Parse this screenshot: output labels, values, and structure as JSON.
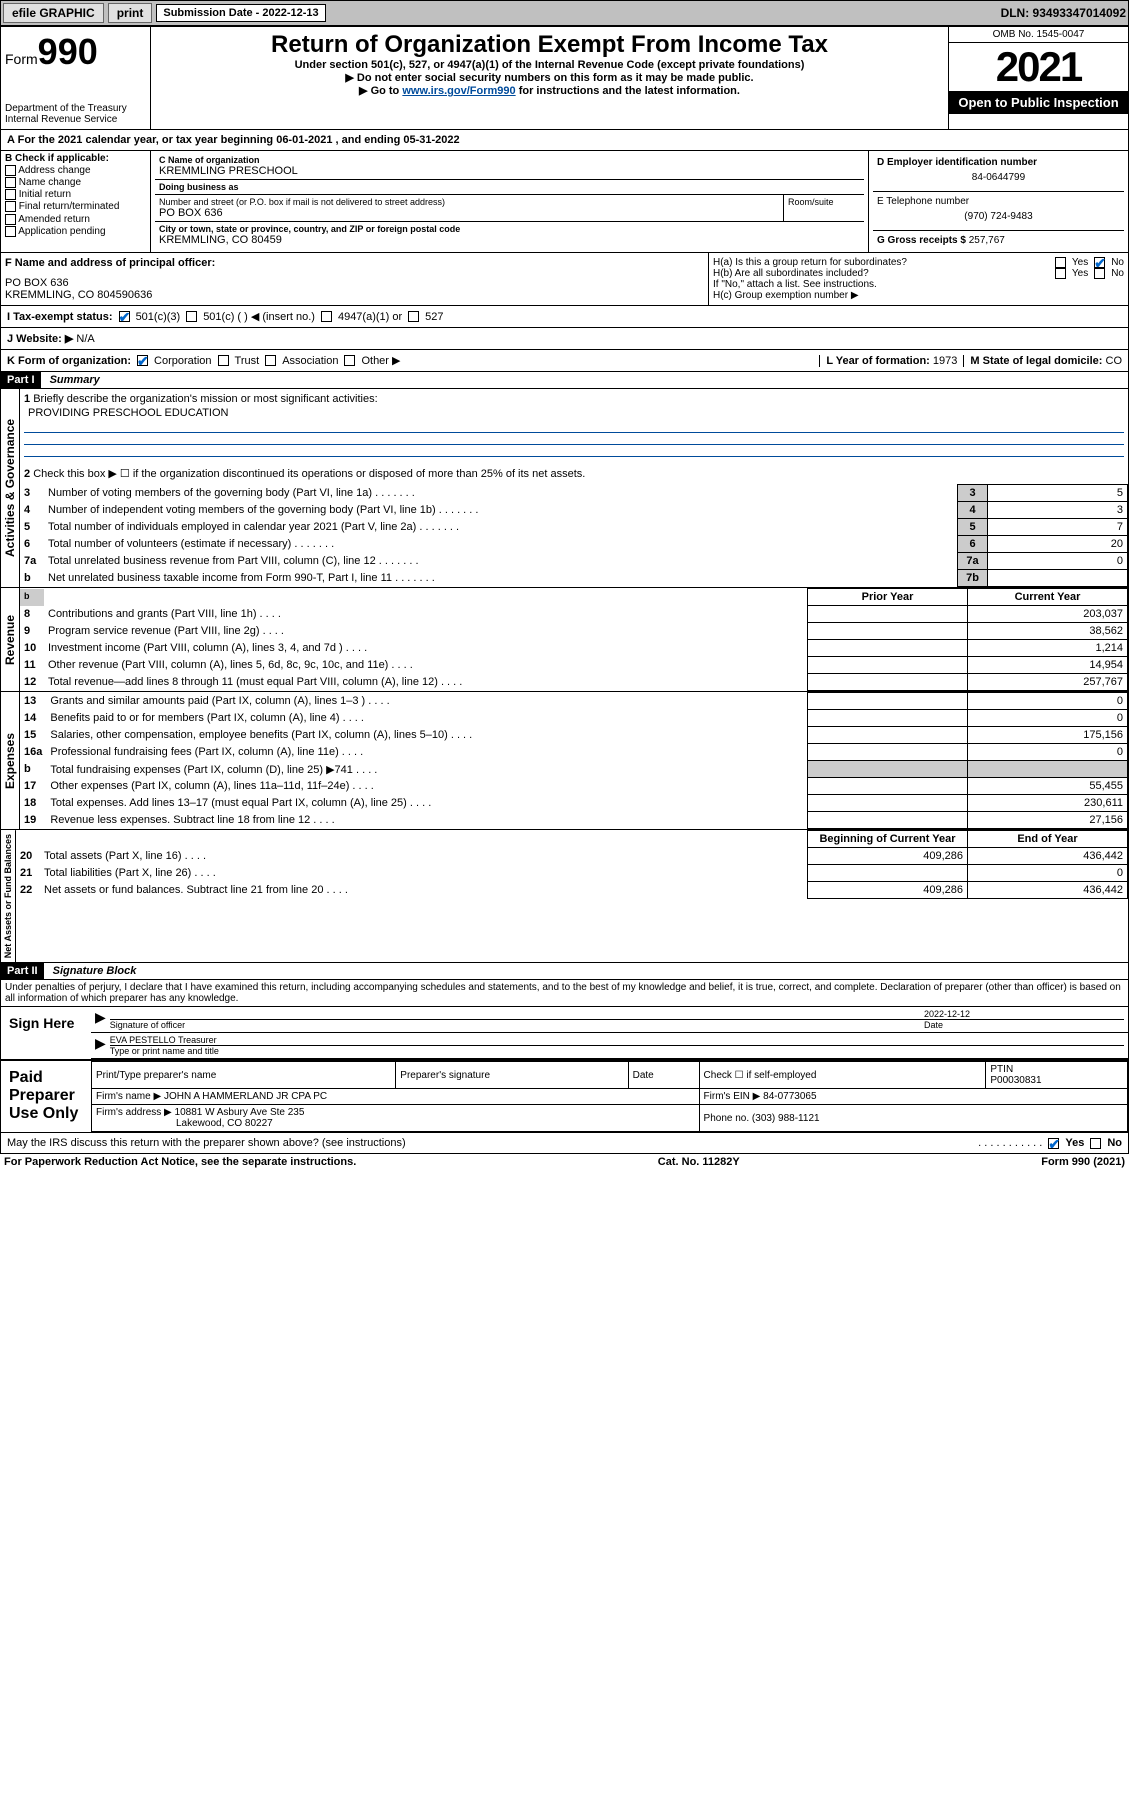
{
  "topbar": {
    "efile": "efile GRAPHIC",
    "print": "print",
    "sub_label": "Submission Date - 2022-12-13",
    "dln": "DLN: 93493347014092"
  },
  "header": {
    "form_prefix": "Form",
    "form_num": "990",
    "dept": "Department of the Treasury",
    "irs": "Internal Revenue Service",
    "title": "Return of Organization Exempt From Income Tax",
    "sub1": "Under section 501(c), 527, or 4947(a)(1) of the Internal Revenue Code (except private foundations)",
    "sub2": "▶ Do not enter social security numbers on this form as it may be made public.",
    "sub3": "▶ Go to ",
    "link": "www.irs.gov/Form990",
    "sub3b": " for instructions and the latest information.",
    "omb": "OMB No. 1545-0047",
    "year": "2021",
    "open": "Open to Public Inspection"
  },
  "row_a": {
    "text": "For the 2021 calendar year, or tax year beginning 06-01-2021  , and ending 05-31-2022"
  },
  "col_b": {
    "label": "B Check if applicable:",
    "opts": [
      "Address change",
      "Name change",
      "Initial return",
      "Final return/terminated",
      "Amended return",
      "Application pending"
    ]
  },
  "col_c": {
    "name_lbl": "C Name of organization",
    "name": "KREMMLING PRESCHOOL",
    "dba_lbl": "Doing business as",
    "dba": "",
    "addr_lbl": "Number and street (or P.O. box if mail is not delivered to street address)",
    "addr": "PO BOX 636",
    "room_lbl": "Room/suite",
    "city_lbl": "City or town, state or province, country, and ZIP or foreign postal code",
    "city": "KREMMLING, CO  80459"
  },
  "col_d": {
    "ein_lbl": "D Employer identification number",
    "ein": "84-0644799",
    "tel_lbl": "E Telephone number",
    "tel": "(970) 724-9483",
    "gross_lbl": "G Gross receipts $",
    "gross": "257,767"
  },
  "officer": {
    "f_lbl": "F  Name and address of principal officer:",
    "line1": "PO BOX 636",
    "line2": "KREMMLING, CO  804590636"
  },
  "h": {
    "ha": "H(a)  Is this a group return for subordinates?",
    "hb": "H(b)  Are all subordinates included?",
    "hb_note": "If \"No,\" attach a list. See instructions.",
    "hc": "H(c)  Group exemption number ▶"
  },
  "tax_status": {
    "lbl": "I   Tax-exempt status:",
    "opts": [
      "501(c)(3)",
      "501(c) (  ) ◀ (insert no.)",
      "4947(a)(1) or",
      "527"
    ]
  },
  "website": {
    "lbl": "J   Website: ▶",
    "val": "N/A"
  },
  "k": {
    "lbl": "K Form of organization:",
    "opts": [
      "Corporation",
      "Trust",
      "Association",
      "Other ▶"
    ]
  },
  "l": {
    "lbl": "L Year of formation:",
    "val": "1973"
  },
  "m": {
    "lbl": "M State of legal domicile:",
    "val": "CO"
  },
  "part1": {
    "hdr": "Part I",
    "title": "Summary",
    "q1": "Briefly describe the organization's mission or most significant activities:",
    "mission": "PROVIDING PRESCHOOL EDUCATION",
    "q2": "Check this box ▶ ☐  if the organization discontinued its operations or disposed of more than 25% of its net assets.",
    "lines_gov": [
      {
        "n": "3",
        "d": "Number of voting members of the governing body (Part VI, line 1a)",
        "box": "3",
        "v": "5"
      },
      {
        "n": "4",
        "d": "Number of independent voting members of the governing body (Part VI, line 1b)",
        "box": "4",
        "v": "3"
      },
      {
        "n": "5",
        "d": "Total number of individuals employed in calendar year 2021 (Part V, line 2a)",
        "box": "5",
        "v": "7"
      },
      {
        "n": "6",
        "d": "Total number of volunteers (estimate if necessary)",
        "box": "6",
        "v": "20"
      },
      {
        "n": "7a",
        "d": "Total unrelated business revenue from Part VIII, column (C), line 12",
        "box": "7a",
        "v": "0"
      },
      {
        "n": "b",
        "d": "Net unrelated business taxable income from Form 990-T, Part I, line 11",
        "box": "7b",
        "v": ""
      }
    ],
    "pycy_hdr": {
      "py": "Prior Year",
      "cy": "Current Year"
    },
    "lines_rev": [
      {
        "n": "8",
        "d": "Contributions and grants (Part VIII, line 1h)",
        "py": "",
        "cy": "203,037"
      },
      {
        "n": "9",
        "d": "Program service revenue (Part VIII, line 2g)",
        "py": "",
        "cy": "38,562"
      },
      {
        "n": "10",
        "d": "Investment income (Part VIII, column (A), lines 3, 4, and 7d )",
        "py": "",
        "cy": "1,214"
      },
      {
        "n": "11",
        "d": "Other revenue (Part VIII, column (A), lines 5, 6d, 8c, 9c, 10c, and 11e)",
        "py": "",
        "cy": "14,954"
      },
      {
        "n": "12",
        "d": "Total revenue—add lines 8 through 11 (must equal Part VIII, column (A), line 12)",
        "py": "",
        "cy": "257,767"
      }
    ],
    "lines_exp": [
      {
        "n": "13",
        "d": "Grants and similar amounts paid (Part IX, column (A), lines 1–3 )",
        "py": "",
        "cy": "0"
      },
      {
        "n": "14",
        "d": "Benefits paid to or for members (Part IX, column (A), line 4)",
        "py": "",
        "cy": "0"
      },
      {
        "n": "15",
        "d": "Salaries, other compensation, employee benefits (Part IX, column (A), lines 5–10)",
        "py": "",
        "cy": "175,156"
      },
      {
        "n": "16a",
        "d": "Professional fundraising fees (Part IX, column (A), line 11e)",
        "py": "",
        "cy": "0"
      },
      {
        "n": "b",
        "d": "Total fundraising expenses (Part IX, column (D), line 25) ▶741",
        "py": "SHADE",
        "cy": "SHADE"
      },
      {
        "n": "17",
        "d": "Other expenses (Part IX, column (A), lines 11a–11d, 11f–24e)",
        "py": "",
        "cy": "55,455"
      },
      {
        "n": "18",
        "d": "Total expenses. Add lines 13–17 (must equal Part IX, column (A), line 25)",
        "py": "",
        "cy": "230,611"
      },
      {
        "n": "19",
        "d": "Revenue less expenses. Subtract line 18 from line 12",
        "py": "",
        "cy": "27,156"
      }
    ],
    "net_hdr": {
      "b": "Beginning of Current Year",
      "e": "End of Year"
    },
    "lines_net": [
      {
        "n": "20",
        "d": "Total assets (Part X, line 16)",
        "b": "409,286",
        "e": "436,442"
      },
      {
        "n": "21",
        "d": "Total liabilities (Part X, line 26)",
        "b": "",
        "e": "0"
      },
      {
        "n": "22",
        "d": "Net assets or fund balances. Subtract line 21 from line 20",
        "b": "409,286",
        "e": "436,442"
      }
    ],
    "vlabels": {
      "gov": "Activities & Governance",
      "rev": "Revenue",
      "exp": "Expenses",
      "net": "Net Assets or Fund Balances"
    }
  },
  "part2": {
    "hdr": "Part II",
    "title": "Signature Block",
    "decl": "Under penalties of perjury, I declare that I have examined this return, including accompanying schedules and statements, and to the best of my knowledge and belief, it is true, correct, and complete. Declaration of preparer (other than officer) is based on all information of which preparer has any knowledge.",
    "sign_here": "Sign Here",
    "sig_officer": "Signature of officer",
    "date": "Date",
    "sig_date": "2022-12-12",
    "name_title_lbl": "Type or print name and title",
    "name_title": "EVA PESTELLO  Treasurer",
    "paid": "Paid Preparer Use Only",
    "prep_name_lbl": "Print/Type preparer's name",
    "prep_sig_lbl": "Preparer's signature",
    "date_lbl": "Date",
    "self_emp": "Check ☐ if self-employed",
    "ptin_lbl": "PTIN",
    "ptin": "P00030831",
    "firm_name_lbl": "Firm's name    ▶",
    "firm_name": "JOHN A HAMMERLAND JR CPA PC",
    "firm_ein_lbl": "Firm's EIN ▶",
    "firm_ein": "84-0773065",
    "firm_addr_lbl": "Firm's address ▶",
    "firm_addr1": "10881 W Asbury Ave Ste 235",
    "firm_addr2": "Lakewood, CO  80227",
    "phone_lbl": "Phone no.",
    "phone": "(303) 988-1121",
    "discuss": "May the IRS discuss this return with the preparer shown above? (see instructions)",
    "paperwork": "For Paperwork Reduction Act Notice, see the separate instructions.",
    "cat": "Cat. No. 11282Y",
    "form_foot": "Form 990 (2021)"
  },
  "yesno": {
    "yes": "Yes",
    "no": "No"
  }
}
